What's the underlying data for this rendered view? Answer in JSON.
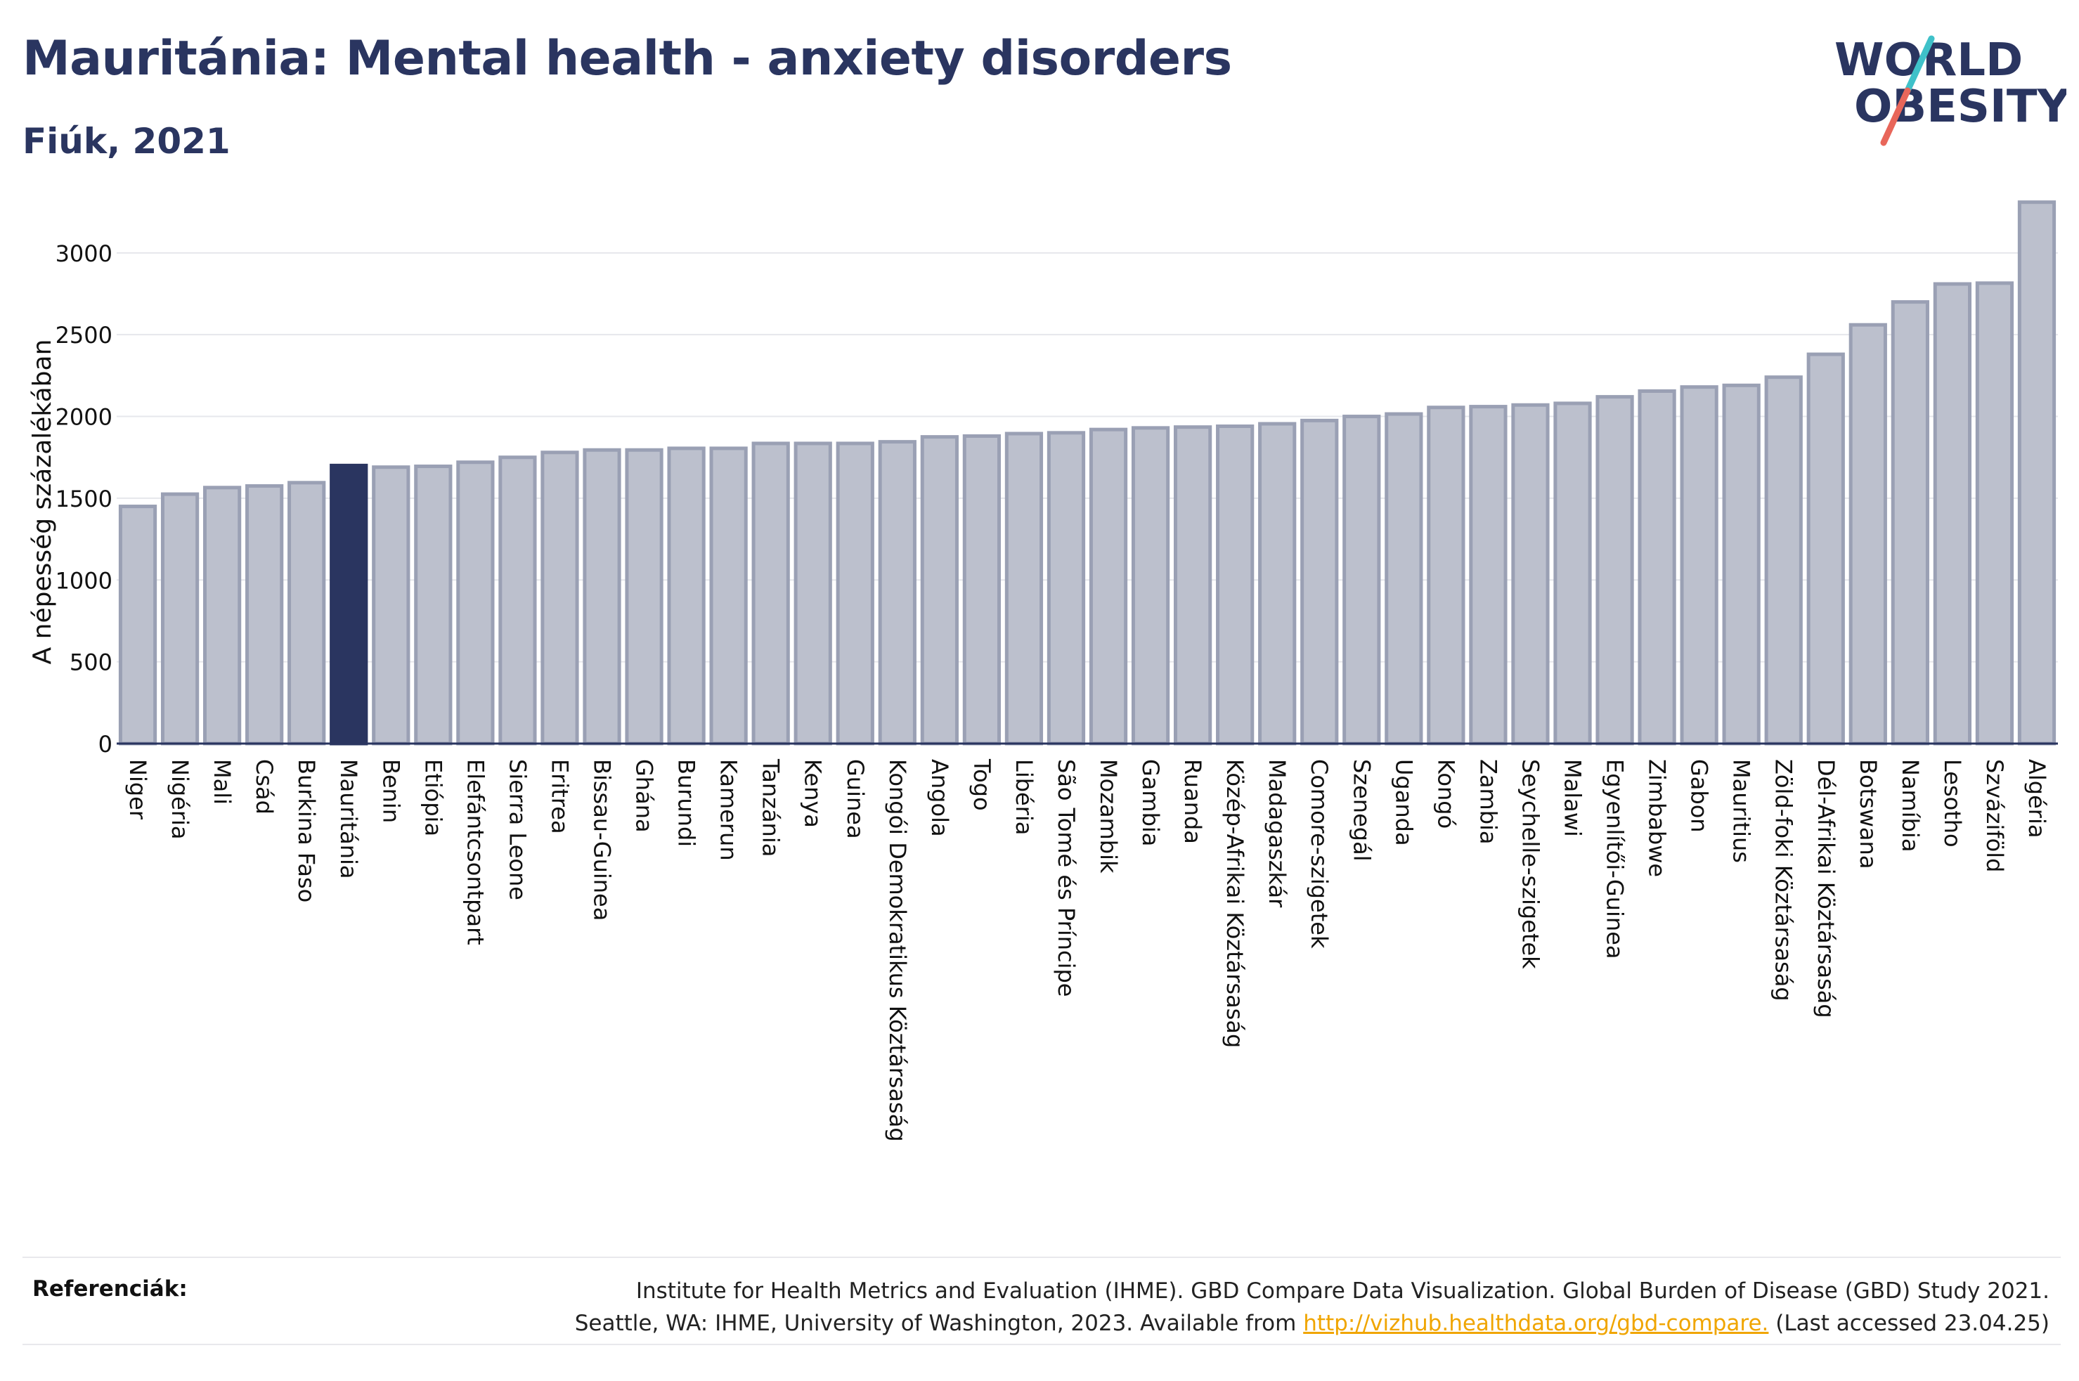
{
  "header": {
    "title": "Mauritánia: Mental health - anxiety disorders",
    "subtitle": "Fiúk, 2021"
  },
  "logo": {
    "line1": "WORLD",
    "line2": "OBESITY",
    "slash_colors": [
      "#3fc1c9",
      "#e8665a"
    ]
  },
  "chart_data": {
    "type": "bar",
    "ylabel": "A népesség százalékában",
    "xlabel": "",
    "ylim": [
      0,
      3300
    ],
    "yticks": [
      0,
      500,
      1000,
      1500,
      2000,
      2500,
      3000
    ],
    "grid": true,
    "highlight": "Mauritánia",
    "colors": {
      "bar": "#bcc0cd",
      "bar_stroke": "#9aa0b4",
      "highlight": "#2a3560",
      "axis": "#2a3560"
    },
    "categories": [
      "Niger",
      "Nigéria",
      "Mali",
      "Csád",
      "Burkina Faso",
      "Mauritánia",
      "Benin",
      "Etiópia",
      "Elefántcsontpart",
      "Sierra Leone",
      "Eritrea",
      "Bissau-Guinea",
      "Ghána",
      "Burundi",
      "Kamerun",
      "Tanzánia",
      "Kenya",
      "Guinea",
      "Kongói Demokratikus Köztársaság",
      "Angola",
      "Togo",
      "Libéria",
      "São Tomé és Príncipe",
      "Mozambik",
      "Gambia",
      "Ruanda",
      "Közép-Afrikai Köztársaság",
      "Madagaszkár",
      "Comore-szigetek",
      "Szenegál",
      "Uganda",
      "Kongó",
      "Zambia",
      "Seychelle-szigetek",
      "Malawi",
      "Egyenlítői-Guinea",
      "Zimbabwe",
      "Gabon",
      "Mauritius",
      "Zöld-foki Köztársaság",
      "Dél-Afrikai Köztársaság",
      "Botswana",
      "Namíbia",
      "Lesotho",
      "Szváziföld",
      "Algéria"
    ],
    "values": [
      1450,
      1525,
      1565,
      1575,
      1595,
      1700,
      1690,
      1695,
      1720,
      1750,
      1780,
      1795,
      1795,
      1805,
      1805,
      1835,
      1835,
      1835,
      1845,
      1875,
      1880,
      1895,
      1900,
      1920,
      1930,
      1935,
      1940,
      1955,
      1975,
      2000,
      2015,
      2055,
      2060,
      2070,
      2080,
      2120,
      2155,
      2180,
      2190,
      2240,
      2380,
      2560,
      2700,
      2810,
      2815,
      3310
    ]
  },
  "footer": {
    "ref_label": "Referenciák:",
    "ref_line1": "Institute for Health Metrics and Evaluation (IHME). GBD Compare Data Visualization. Global Burden of Disease (GBD) Study 2021.",
    "ref_line2_pre": "Seattle, WA: IHME, University of Washington, 2023. Available from ",
    "ref_link": "http://vizhub.healthdata.org/gbd-compare.",
    "ref_line2_post": " (Last accessed 23.04.25)"
  }
}
